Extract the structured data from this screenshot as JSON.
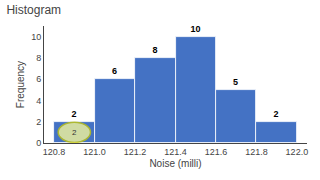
{
  "chart_data": {
    "type": "histogram",
    "title": "Histogram",
    "xlabel": "Noise (milli)",
    "ylabel": "Frequency",
    "bins": [
      120.8,
      121.0,
      121.2,
      121.4,
      121.6,
      121.8,
      122.0
    ],
    "values": [
      2,
      6,
      8,
      10,
      5,
      2
    ],
    "color": "#4472C4",
    "data_labels": true,
    "xlim": [
      120.75,
      122.05
    ],
    "xticks": [
      120.8,
      {
        "value": 121.0,
        "label": "121.0"
      },
      121.2,
      121.4,
      121.6,
      121.8,
      {
        "value": 122.0,
        "label": "122.0"
      }
    ],
    "ylim": [
      0,
      11
    ],
    "yticks": [
      0,
      2,
      4,
      6,
      8,
      10
    ],
    "grid": false,
    "annotations": [
      {
        "text": "2",
        "x": 120.9,
        "y": 1
      }
    ]
  }
}
